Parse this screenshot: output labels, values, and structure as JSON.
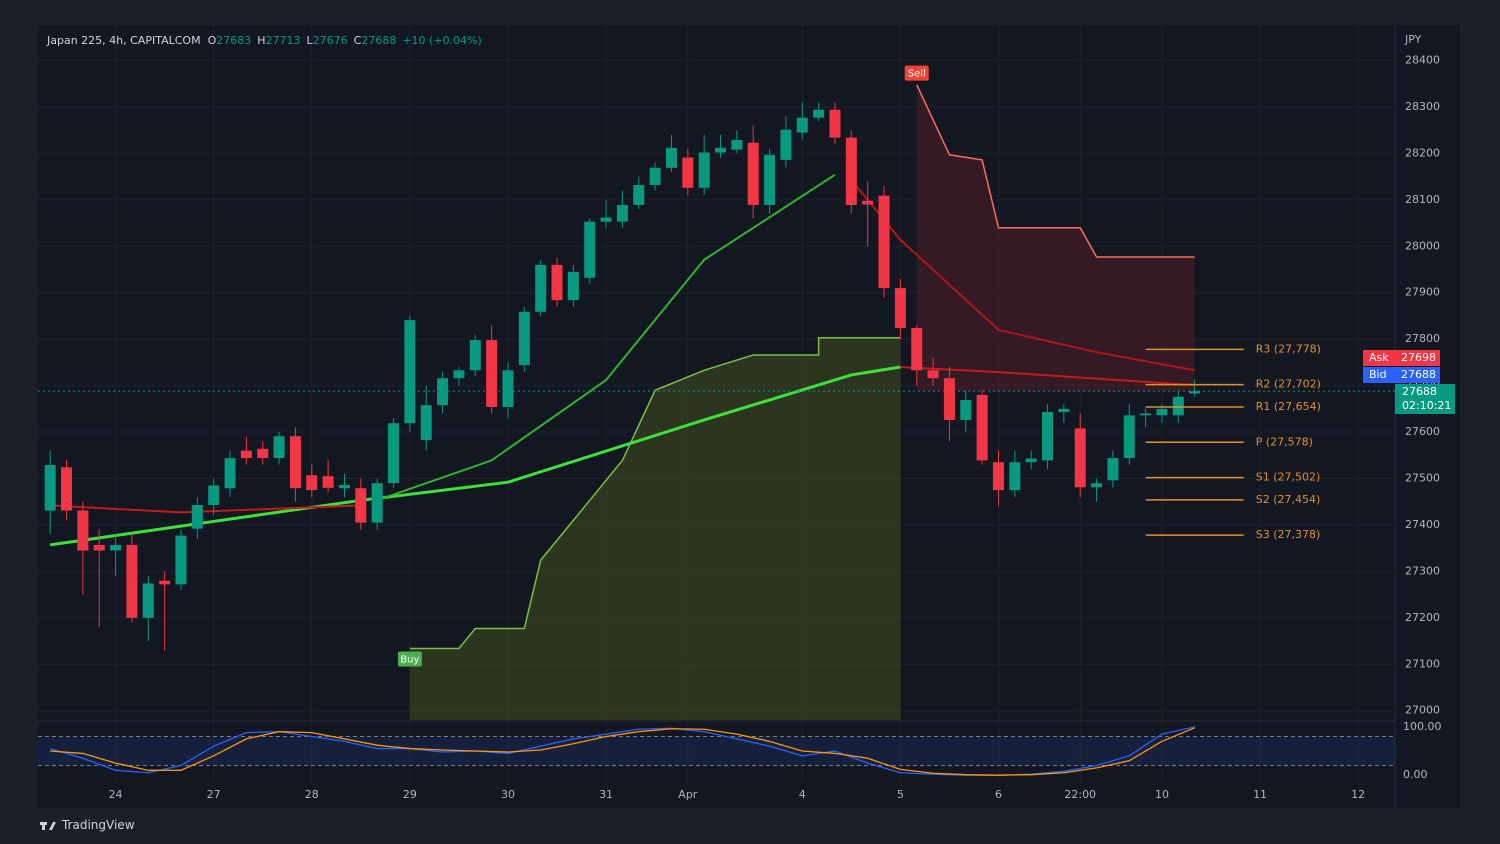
{
  "chart_data": {
    "type": "candlestick",
    "header": {
      "symbol": "Japan 225, 4h, CAPITALCOM",
      "ohlc_keys": [
        "O",
        "H",
        "L",
        "C"
      ],
      "change": "+10 (+0.04%)"
    },
    "currency": "JPY",
    "categories": [
      null,
      null,
      null,
      null,
      "24",
      null,
      null,
      null,
      null,
      null,
      "27",
      null,
      null,
      null,
      null,
      null,
      "28",
      null,
      null,
      null,
      null,
      null,
      "29",
      null,
      null,
      null,
      null,
      null,
      "30",
      null,
      null,
      null,
      null,
      null,
      "31",
      null,
      null,
      null,
      null,
      "Apr",
      null,
      null,
      null,
      null,
      null,
      null,
      "4",
      null,
      null,
      null,
      null,
      null,
      "5",
      null,
      null,
      null,
      null,
      null,
      "6",
      null,
      null,
      null,
      null,
      "22:00",
      null,
      null,
      null,
      null,
      "10",
      null,
      null,
      null,
      null,
      null,
      "11",
      null,
      null,
      null,
      null,
      null,
      "12"
    ],
    "open": [
      27431,
      27524,
      27431,
      27357,
      27345,
      27357,
      27200,
      27280,
      27272,
      27392,
      27443,
      27479,
      27560,
      27564,
      27544,
      27591,
      27507,
      27505,
      27479,
      27479,
      27405,
      27490,
      27619,
      27583,
      27658,
      27716,
      27733,
      27798,
      27654,
      27744,
      27859,
      27960,
      27884,
      27932,
      28053,
      28053,
      28089,
      28132,
      28169,
      28191,
      28126,
      28202,
      28208,
      28223,
      28089,
      28186,
      28245,
      28277,
      28294,
      28234,
      28098,
      28109,
      27910,
      27824,
      27733,
      27716,
      27626,
      27680,
      27535,
      27475,
      27535,
      27539,
      27643,
      27608,
      27481,
      27496,
      27544,
      27636,
      27636,
      27636,
      27683,
      null,
      null,
      null,
      null,
      null,
      null,
      null,
      null,
      null,
      null
    ],
    "high": [
      27560,
      27540,
      27450,
      27390,
      27380,
      27380,
      27290,
      27300,
      27390,
      27460,
      27500,
      27560,
      27590,
      27580,
      27600,
      27610,
      27530,
      27540,
      27510,
      27500,
      27500,
      27630,
      27850,
      27700,
      27730,
      27740,
      27810,
      27830,
      27750,
      27870,
      27970,
      27975,
      27960,
      28060,
      28100,
      28120,
      28150,
      28180,
      28240,
      28210,
      28240,
      28240,
      28250,
      28260,
      28210,
      28280,
      28310,
      28310,
      28310,
      28250,
      28140,
      28130,
      27930,
      27830,
      27760,
      27740,
      27690,
      27690,
      27560,
      27560,
      27560,
      27660,
      27660,
      27640,
      27500,
      27560,
      27660,
      27650,
      27660,
      27690,
      27713,
      null,
      null,
      null,
      null,
      null,
      null,
      null,
      null,
      null,
      null
    ],
    "low": [
      27380,
      27410,
      27250,
      27180,
      27290,
      27190,
      27150,
      27130,
      27260,
      27370,
      27420,
      27460,
      27530,
      27530,
      27530,
      27450,
      27460,
      27470,
      27460,
      27390,
      27390,
      27480,
      27600,
      27560,
      27640,
      27700,
      27720,
      27640,
      27630,
      27730,
      27850,
      27870,
      27870,
      27920,
      28040,
      28040,
      28080,
      28120,
      28160,
      28110,
      28110,
      28190,
      28200,
      28060,
      28070,
      28170,
      28230,
      28270,
      28220,
      28070,
      28000,
      27890,
      27800,
      27700,
      27700,
      27580,
      27600,
      27530,
      27440,
      27460,
      27520,
      27520,
      27620,
      27460,
      27450,
      27480,
      27530,
      27610,
      27620,
      27620,
      27676,
      null,
      null,
      null,
      null,
      null,
      null,
      null,
      null,
      null,
      null
    ],
    "close": [
      27529,
      27431,
      27345,
      27345,
      27357,
      27200,
      27274,
      27272,
      27377,
      27443,
      27485,
      27544,
      27544,
      27544,
      27591,
      27479,
      27475,
      27480,
      27486,
      27405,
      27490,
      27619,
      27841,
      27658,
      27716,
      27733,
      27798,
      27654,
      27733,
      27859,
      27960,
      27884,
      27945,
      28053,
      28062,
      28089,
      28132,
      28169,
      28212,
      28126,
      28202,
      28212,
      28229,
      28089,
      28197,
      28251,
      28277,
      28294,
      28234,
      28089,
      28090,
      27910,
      27824,
      27733,
      27716,
      27626,
      27669,
      27539,
      27475,
      27535,
      27543,
      27643,
      27650,
      27481,
      27490,
      27544,
      27636,
      27640,
      27650,
      27676,
      27688,
      null,
      null,
      null,
      null,
      null,
      null,
      null,
      null,
      null,
      null
    ],
    "up_color": "#089981",
    "down_color": "#f23645",
    "ylim": [
      26980,
      28470
    ],
    "yticks": [
      27000,
      27100,
      27200,
      27300,
      27400,
      27500,
      27600,
      27700,
      27800,
      27900,
      28000,
      28100,
      28200,
      28300,
      28400
    ],
    "grid": true,
    "lines": [
      {
        "color": "#3ee03a",
        "x": [
          0,
          19,
          28,
          40,
          49,
          52
        ],
        "values": [
          27357,
          27453,
          27492,
          27626,
          27723,
          27740
        ]
      },
      {
        "color": "#c41a1a",
        "x": [
          0,
          8,
          19
        ],
        "values": [
          27442,
          27427,
          27442
        ]
      },
      {
        "color": "#c41a1a",
        "x": [
          52,
          58,
          70
        ],
        "values": [
          27740,
          27729,
          27701
        ]
      },
      {
        "color": "#2fb52c",
        "x": [
          20,
          27,
          34,
          40,
          48
        ],
        "values": [
          27453,
          27539,
          27712,
          27971,
          28154
        ]
      },
      {
        "color": "#b3161b",
        "x": [
          49,
          52,
          58,
          64,
          70
        ],
        "values": [
          28143,
          28014,
          27820,
          27772,
          27733
        ]
      }
    ],
    "supertrend": {
      "color": "#7bc043",
      "x": [
        22,
        25,
        26,
        29,
        30,
        33,
        35,
        37,
        40,
        43,
        47,
        47,
        52
      ],
      "values": [
        27134,
        27134,
        27177,
        27177,
        27324,
        27453,
        27539,
        27690,
        27733,
        27766,
        27766,
        27803,
        27803
      ]
    },
    "sell_line": {
      "color": "#ff6b5e",
      "x": [
        53,
        55,
        57,
        58,
        63,
        64,
        70
      ],
      "values": [
        28348,
        28197,
        28186,
        28040,
        28040,
        27977,
        27977
      ]
    },
    "signals": [
      {
        "label": "Buy",
        "x": 22,
        "value": 27134,
        "color": "#4caf50"
      },
      {
        "label": "Sell",
        "x": 53,
        "value": 28348,
        "color": "#f44336"
      }
    ],
    "pivots": [
      {
        "value": 27778,
        "label": "R3 (27,778)"
      },
      {
        "value": 27702,
        "label": "R2 (27,702)"
      },
      {
        "value": 27654,
        "label": "R1 (27,654)"
      },
      {
        "value": 27578,
        "label": "P (27,578)"
      },
      {
        "value": 27502,
        "label": "S1 (27,502)"
      },
      {
        "value": 27454,
        "label": "S2 (27,454)"
      },
      {
        "value": 27378,
        "label": "S3 (27,378)"
      }
    ],
    "pivot_color": "#e0912f",
    "quote": {
      "ask_label": "Ask",
      "ask": "27698",
      "bid_label": "Bid",
      "bid": "27688",
      "last": "27688",
      "countdown": "02:10:21"
    },
    "stoch": {
      "x": [
        0,
        2,
        4,
        6,
        8,
        10,
        12,
        14,
        16,
        18,
        20,
        22,
        24,
        26,
        28,
        30,
        32,
        34,
        36,
        38,
        40,
        42,
        44,
        46,
        48,
        50,
        52,
        54,
        56,
        58,
        60,
        62,
        64,
        66,
        68,
        70
      ],
      "series": [
        {
          "color": "#2962ff",
          "values": [
            55,
            35,
            10,
            5,
            20,
            60,
            88,
            90,
            80,
            70,
            55,
            55,
            48,
            50,
            45,
            60,
            75,
            85,
            95,
            97,
            90,
            75,
            60,
            40,
            50,
            25,
            5,
            2,
            0,
            0,
            2,
            8,
            20,
            40,
            85,
            100
          ]
        },
        {
          "color": "#ff9800",
          "values": [
            50,
            45,
            25,
            10,
            10,
            40,
            75,
            90,
            88,
            75,
            62,
            55,
            52,
            50,
            48,
            52,
            65,
            80,
            90,
            96,
            95,
            85,
            70,
            50,
            45,
            35,
            12,
            4,
            1,
            0,
            1,
            5,
            15,
            30,
            70,
            98
          ]
        }
      ],
      "ylim": [
        -10,
        110
      ],
      "yticks": [
        {
          "value": 100,
          "label": "100.00"
        },
        {
          "value": 0,
          "label": "0.00"
        }
      ],
      "levels": [
        80,
        20
      ]
    },
    "brand": "TradingView"
  }
}
